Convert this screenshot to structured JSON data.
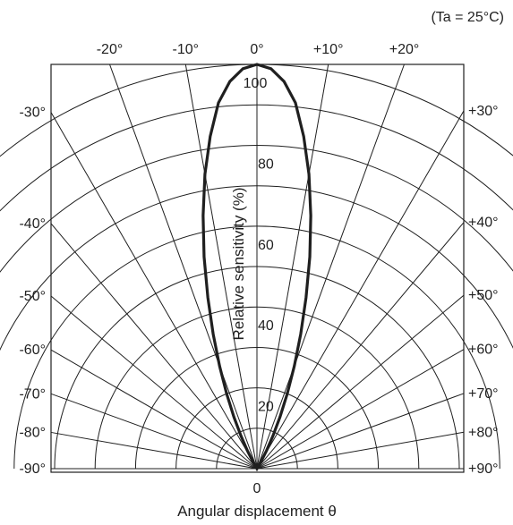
{
  "chart_data": {
    "type": "polar",
    "condition": "(Ta = 25°C)",
    "radial_axis": {
      "label": "Relative sensitivity (%)",
      "range": [
        0,
        100
      ],
      "ticks": [
        "20",
        "40",
        "60",
        "80",
        "100"
      ],
      "grid_circles": [
        10,
        20,
        30,
        40,
        50,
        60,
        70,
        80,
        90,
        100
      ]
    },
    "angular_axis": {
      "label": "Angular displacement θ",
      "range_deg": [
        -90,
        90
      ],
      "top_ticks": [
        {
          "deg": -20,
          "label": "-20°"
        },
        {
          "deg": -10,
          "label": "-10°"
        },
        {
          "deg": 0,
          "label": "0°"
        },
        {
          "deg": 10,
          "label": "+10°"
        },
        {
          "deg": 20,
          "label": "+20°"
        }
      ],
      "left_ticks": [
        {
          "deg": -30,
          "label": "-30°"
        },
        {
          "deg": -40,
          "label": "-40°"
        },
        {
          "deg": -50,
          "label": "-50°"
        },
        {
          "deg": -60,
          "label": "-60°"
        },
        {
          "deg": -70,
          "label": "-70°"
        },
        {
          "deg": -80,
          "label": "-80°"
        },
        {
          "deg": -90,
          "label": "-90°"
        }
      ],
      "right_ticks": [
        {
          "deg": 30,
          "label": "+30°"
        },
        {
          "deg": 40,
          "label": "+40°"
        },
        {
          "deg": 50,
          "label": "+50°"
        },
        {
          "deg": 60,
          "label": "+60°"
        },
        {
          "deg": 70,
          "label": "+70°"
        },
        {
          "deg": 80,
          "label": "+80°"
        },
        {
          "deg": 90,
          "label": "+90°"
        }
      ],
      "grid_spoke_deg": [
        -90,
        -80,
        -70,
        -60,
        -50,
        -40,
        -30,
        -20,
        -10,
        0,
        10,
        20,
        30,
        40,
        50,
        60,
        70,
        80,
        90
      ]
    },
    "origin_label": "0",
    "series": [
      {
        "points": [
          {
            "deg": 0,
            "r": 100
          },
          {
            "deg": 2,
            "r": 99
          },
          {
            "deg": 4,
            "r": 96
          },
          {
            "deg": 6,
            "r": 91
          },
          {
            "deg": 8,
            "r": 83
          },
          {
            "deg": 10,
            "r": 74
          },
          {
            "deg": 12,
            "r": 64
          },
          {
            "deg": 14,
            "r": 54
          },
          {
            "deg": 16,
            "r": 44
          },
          {
            "deg": 18,
            "r": 35
          },
          {
            "deg": 20,
            "r": 27
          },
          {
            "deg": 22,
            "r": 20
          },
          {
            "deg": 24,
            "r": 14
          },
          {
            "deg": 26,
            "r": 9
          },
          {
            "deg": 28,
            "r": 5
          },
          {
            "deg": 30,
            "r": 2
          },
          {
            "deg": 32,
            "r": 0
          }
        ],
        "symmetric": true,
        "color": "#1f1f1f"
      }
    ]
  }
}
